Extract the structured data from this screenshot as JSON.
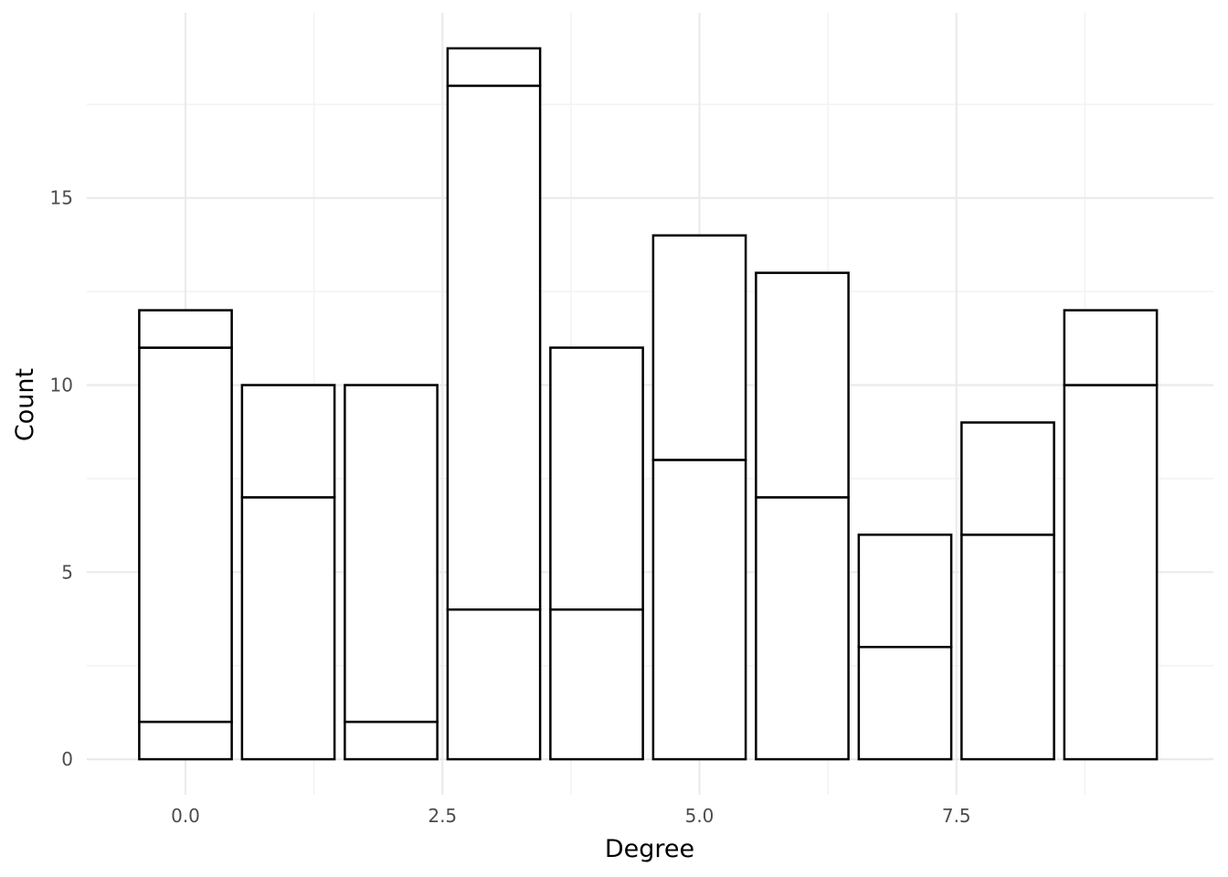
{
  "chart_data": {
    "type": "bar",
    "xlabel": "Degree",
    "ylabel": "Count",
    "x": [
      0,
      1,
      2,
      3,
      4,
      5,
      6,
      7,
      8,
      9
    ],
    "stacks": [
      [
        1,
        10,
        1
      ],
      [
        7,
        3
      ],
      [
        1,
        9
      ],
      [
        4,
        14,
        1
      ],
      [
        4,
        7
      ],
      [
        8,
        6
      ],
      [
        7,
        6
      ],
      [
        3,
        3
      ],
      [
        6,
        3
      ],
      [
        10,
        2
      ]
    ],
    "totals": [
      12,
      10,
      10,
      19,
      11,
      14,
      13,
      6,
      9,
      12
    ],
    "xlim": [
      -0.96,
      10.0
    ],
    "ylim": [
      -0.95,
      19.95
    ],
    "x_ticks": [
      {
        "value": 0,
        "label": "0.0"
      },
      {
        "value": 2.5,
        "label": "2.5"
      },
      {
        "value": 5,
        "label": "5.0"
      },
      {
        "value": 7.5,
        "label": "7.5"
      }
    ],
    "y_ticks": [
      {
        "value": 0,
        "label": "0"
      },
      {
        "value": 5,
        "label": "5"
      },
      {
        "value": 10,
        "label": "10"
      },
      {
        "value": 15,
        "label": "15"
      }
    ],
    "x_minor": [
      1.25,
      3.75,
      6.25,
      8.75
    ],
    "y_minor": [
      2.5,
      7.5,
      12.5,
      17.5
    ],
    "bar_width": 0.9,
    "fill": "#ffffff",
    "outline": "#000000",
    "grid": true,
    "legend": "none"
  }
}
